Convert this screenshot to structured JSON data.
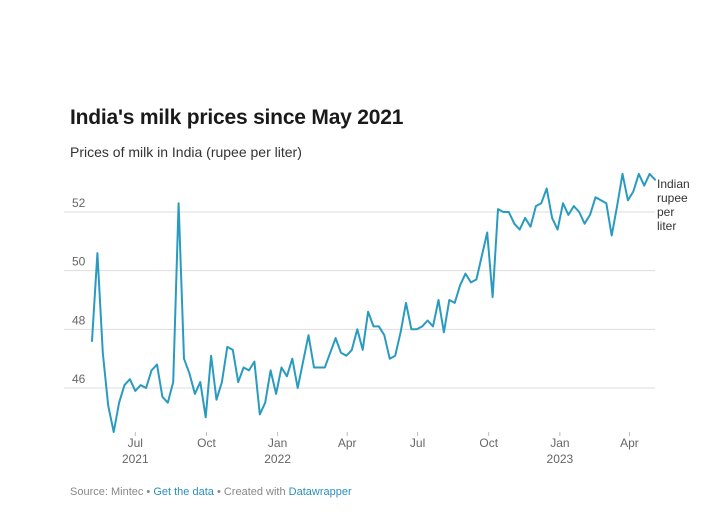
{
  "header": {
    "title": "India's milk prices since May 2021",
    "subtitle": "Prices of milk in India (rupee per liter)"
  },
  "footer": {
    "source": "Source: Mintec",
    "separator1": " • ",
    "get_data": "Get the data",
    "separator2": " • Created with ",
    "datawrapper": "Datawrapper"
  },
  "colors": {
    "line": "#2a9bc0",
    "grid": "#dddddd",
    "axis_text": "#666666"
  },
  "chart_data": {
    "type": "line",
    "title": "India's milk prices since May 2021",
    "subtitle": "Prices of milk in India (rupee per liter)",
    "xlabel": "",
    "ylabel": "",
    "ylim": [
      44.5,
      53.5
    ],
    "y_ticks": [
      "46",
      "48",
      "50",
      "52"
    ],
    "x_ticks": [
      {
        "date": "2021-07-01",
        "label": "Jul",
        "year": "2021"
      },
      {
        "date": "2021-10-01",
        "label": "Oct",
        "year": ""
      },
      {
        "date": "2022-01-01",
        "label": "Jan",
        "year": "2022"
      },
      {
        "date": "2022-04-01",
        "label": "Apr",
        "year": ""
      },
      {
        "date": "2022-07-01",
        "label": "Jul",
        "year": ""
      },
      {
        "date": "2022-10-01",
        "label": "Oct",
        "year": ""
      },
      {
        "date": "2023-01-01",
        "label": "Jan",
        "year": "2023"
      },
      {
        "date": "2023-04-01",
        "label": "Apr",
        "year": ""
      }
    ],
    "grid": true,
    "series": [
      {
        "name": "Indian rupee per liter",
        "x": [
          "2021-05-06",
          "2021-05-13",
          "2021-05-20",
          "2021-05-27",
          "2021-06-03",
          "2021-06-10",
          "2021-06-17",
          "2021-06-24",
          "2021-07-01",
          "2021-07-08",
          "2021-07-15",
          "2021-07-22",
          "2021-07-29",
          "2021-08-05",
          "2021-08-12",
          "2021-08-19",
          "2021-08-26",
          "2021-09-02",
          "2021-09-09",
          "2021-09-16",
          "2021-09-23",
          "2021-09-30",
          "2021-10-07",
          "2021-10-14",
          "2021-10-21",
          "2021-10-28",
          "2021-11-04",
          "2021-11-11",
          "2021-11-18",
          "2021-11-25",
          "2021-12-02",
          "2021-12-09",
          "2021-12-16",
          "2021-12-23",
          "2021-12-30",
          "2022-01-06",
          "2022-01-13",
          "2022-01-20",
          "2022-01-27",
          "2022-02-03",
          "2022-02-10",
          "2022-02-17",
          "2022-02-24",
          "2022-03-03",
          "2022-03-10",
          "2022-03-17",
          "2022-03-24",
          "2022-03-31",
          "2022-04-07",
          "2022-04-14",
          "2022-04-21",
          "2022-04-28",
          "2022-05-05",
          "2022-05-12",
          "2022-05-19",
          "2022-05-26",
          "2022-06-02",
          "2022-06-09",
          "2022-06-16",
          "2022-06-23",
          "2022-06-30",
          "2022-07-07",
          "2022-07-14",
          "2022-07-21",
          "2022-07-28",
          "2022-08-04",
          "2022-08-11",
          "2022-08-18",
          "2022-08-25",
          "2022-09-01",
          "2022-09-08",
          "2022-09-15",
          "2022-09-22",
          "2022-09-29",
          "2022-10-06",
          "2022-10-13",
          "2022-10-20",
          "2022-10-27",
          "2022-11-03",
          "2022-11-10",
          "2022-11-17",
          "2022-11-24",
          "2022-12-01",
          "2022-12-08",
          "2022-12-15",
          "2022-12-22",
          "2022-12-29",
          "2023-01-05",
          "2023-01-12",
          "2023-01-19",
          "2023-01-26",
          "2023-02-02",
          "2023-02-09",
          "2023-02-16",
          "2023-02-23",
          "2023-03-02",
          "2023-03-09",
          "2023-03-16",
          "2023-03-23",
          "2023-03-30",
          "2023-04-06",
          "2023-04-13",
          "2023-04-20",
          "2023-04-27",
          "2023-05-04"
        ],
        "values": [
          47.6,
          50.6,
          47.2,
          45.4,
          44.5,
          45.5,
          46.1,
          46.3,
          45.9,
          46.1,
          46.0,
          46.6,
          46.8,
          45.7,
          45.5,
          46.2,
          52.3,
          47.0,
          46.5,
          45.8,
          46.2,
          45.0,
          47.1,
          45.6,
          46.2,
          47.4,
          47.3,
          46.2,
          46.7,
          46.6,
          46.9,
          45.1,
          45.5,
          46.6,
          45.8,
          46.7,
          46.4,
          47.0,
          46.0,
          46.9,
          47.8,
          46.7,
          46.7,
          46.7,
          47.2,
          47.7,
          47.2,
          47.1,
          47.3,
          48.0,
          47.3,
          48.6,
          48.1,
          48.1,
          47.8,
          47.0,
          47.1,
          47.9,
          48.9,
          48.0,
          48.0,
          48.1,
          48.3,
          48.1,
          49.0,
          47.9,
          49.0,
          48.9,
          49.5,
          49.9,
          49.6,
          49.7,
          50.5,
          51.3,
          49.1,
          52.1,
          52.0,
          52.0,
          51.6,
          51.4,
          51.8,
          51.5,
          52.2,
          52.3,
          52.8,
          51.8,
          51.4,
          52.3,
          51.9,
          52.2,
          52.0,
          51.6,
          51.9,
          52.5,
          52.4,
          52.3,
          51.2,
          52.2,
          53.3,
          52.4,
          52.7,
          53.3,
          52.9,
          53.3,
          53.1
        ]
      }
    ],
    "line_label": [
      "Indian",
      "rupee",
      "per",
      "liter"
    ]
  }
}
